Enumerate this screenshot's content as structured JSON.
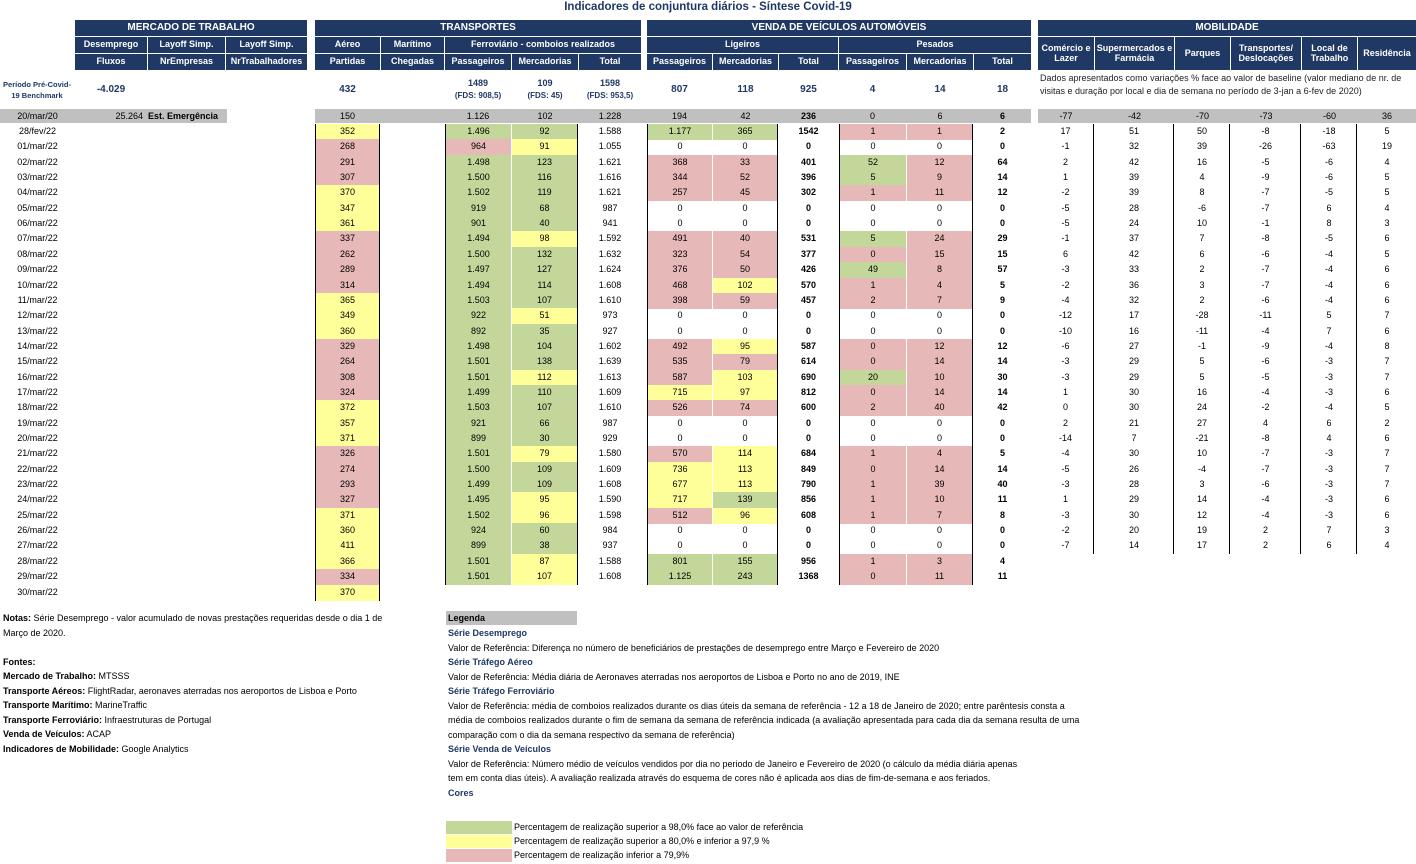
{
  "title": "Indicadores de conjuntura diários - Síntese Covid-19",
  "groups": {
    "mercado": "MERCADO DE TRABALHO",
    "transportes": "TRANSPORTES",
    "veiculos": "VENDA DE VEÍCULOS AUTOMÓVEIS",
    "mobilidade": "MOBILIDADE"
  },
  "subheaders": {
    "desemprego": "Desemprego",
    "layoff1": "Layoff Simp.",
    "layoff2": "Layoff Simp.",
    "aereo": "Aéreo",
    "maritimo": "Marítimo",
    "ferroviario": "Ferroviário - comboios realizados",
    "ligeiros": "Ligeiros",
    "pesados": "Pesados",
    "comercio": "Comércio e Lazer",
    "supermercados": "Supermercados e Farmácia",
    "parques": "Parques",
    "transportes": "Transportes/ Deslocações",
    "trabalho": "Local de Trabalho",
    "residencia": "Residência"
  },
  "subsubheaders": {
    "fluxos": "Fluxos",
    "nrempresas": "NrEmpresas",
    "nrtrabalhadores": "NrTrabalhadores",
    "partidas": "Partidas",
    "chegadas": "Chegadas",
    "f_passageiros": "Passageiros",
    "f_mercadorias": "Mercadorias",
    "f_total": "Total",
    "l_passageiros": "Passageiros",
    "l_mercadorias": "Mercadorias",
    "l_total": "Total",
    "p_passageiros": "Passageiros",
    "p_mercadorias": "Mercadorias",
    "p_total": "Total"
  },
  "benchmark": {
    "label": "Período Pré-Covid-19 Benchmark",
    "desemprego": "-4.029",
    "aereo": "432",
    "f_pass": "1489",
    "f_pass_sub": "(FDS: 908,5)",
    "f_merc": "109",
    "f_merc_sub": "(FDS: 45)",
    "f_total": "1598",
    "f_total_sub": "(FDS: 953,5)",
    "l_pass": "807",
    "l_merc": "118",
    "l_total": "925",
    "p_pass": "4",
    "p_merc": "14",
    "p_total": "18",
    "mob_note": "Dados apresentados como variações % face ao valor de baseline (valor mediano de nr. de visitas e duração por local e dia de semana no período de 3-jan a 6-fev de 2020)"
  },
  "emergency_row": {
    "date": "20/mar/20",
    "desemprego": "25.264",
    "label": "Est. Emergência",
    "aereo": "150",
    "f_pass": "1.126",
    "f_merc": "102",
    "f_total": "1.228",
    "l_pass": "194",
    "l_merc": "42",
    "l_total": "236",
    "p_pass": "0",
    "p_merc": "6",
    "p_total": "6",
    "mob": [
      "-77",
      "-42",
      "-70",
      "-73",
      "-60",
      "36"
    ]
  },
  "rows": [
    {
      "d": "28/fev/22",
      "a": "352",
      "ac": "y",
      "fp": "1.496",
      "fpc": "g",
      "fm": "92",
      "fmc": "g",
      "ft": "1.588",
      "lp": "1.177",
      "lpc": "g",
      "lm": "365",
      "lmc": "g",
      "lt": "1542",
      "pp": "1",
      "ppc": "r",
      "pm": "1",
      "pmc": "r",
      "pt": "2",
      "m": [
        "17",
        "51",
        "50",
        "-8",
        "-18",
        "5"
      ]
    },
    {
      "d": "01/mar/22",
      "a": "268",
      "ac": "r",
      "fp": "964",
      "fpc": "r",
      "fm": "91",
      "fmc": "y",
      "ft": "1.055",
      "lp": "0",
      "lpc": "",
      "lm": "0",
      "lmc": "",
      "lt": "0",
      "pp": "0",
      "ppc": "",
      "pm": "0",
      "pmc": "",
      "pt": "0",
      "m": [
        "-1",
        "32",
        "39",
        "-26",
        "-63",
        "19"
      ]
    },
    {
      "d": "02/mar/22",
      "a": "291",
      "ac": "r",
      "fp": "1.498",
      "fpc": "g",
      "fm": "123",
      "fmc": "g",
      "ft": "1.621",
      "lp": "368",
      "lpc": "r",
      "lm": "33",
      "lmc": "r",
      "lt": "401",
      "pp": "52",
      "ppc": "g",
      "pm": "12",
      "pmc": "r",
      "pt": "64",
      "m": [
        "2",
        "42",
        "16",
        "-5",
        "-6",
        "4"
      ]
    },
    {
      "d": "03/mar/22",
      "a": "307",
      "ac": "r",
      "fp": "1.500",
      "fpc": "g",
      "fm": "116",
      "fmc": "g",
      "ft": "1.616",
      "lp": "344",
      "lpc": "r",
      "lm": "52",
      "lmc": "r",
      "lt": "396",
      "pp": "5",
      "ppc": "g",
      "pm": "9",
      "pmc": "r",
      "pt": "14",
      "m": [
        "1",
        "39",
        "4",
        "-9",
        "-6",
        "5"
      ]
    },
    {
      "d": "04/mar/22",
      "a": "370",
      "ac": "y",
      "fp": "1.502",
      "fpc": "g",
      "fm": "119",
      "fmc": "g",
      "ft": "1.621",
      "lp": "257",
      "lpc": "r",
      "lm": "45",
      "lmc": "r",
      "lt": "302",
      "pp": "1",
      "ppc": "r",
      "pm": "11",
      "pmc": "r",
      "pt": "12",
      "m": [
        "-2",
        "39",
        "8",
        "-7",
        "-5",
        "5"
      ]
    },
    {
      "d": "05/mar/22",
      "a": "347",
      "ac": "y",
      "fp": "919",
      "fpc": "g",
      "fm": "68",
      "fmc": "g",
      "ft": "987",
      "lp": "0",
      "lpc": "",
      "lm": "0",
      "lmc": "",
      "lt": "0",
      "pp": "0",
      "ppc": "",
      "pm": "0",
      "pmc": "",
      "pt": "0",
      "m": [
        "-5",
        "28",
        "-6",
        "-7",
        "6",
        "4"
      ]
    },
    {
      "d": "06/mar/22",
      "a": "361",
      "ac": "y",
      "fp": "901",
      "fpc": "g",
      "fm": "40",
      "fmc": "g",
      "ft": "941",
      "lp": "0",
      "lpc": "",
      "lm": "0",
      "lmc": "",
      "lt": "0",
      "pp": "0",
      "ppc": "",
      "pm": "0",
      "pmc": "",
      "pt": "0",
      "m": [
        "-5",
        "24",
        "10",
        "-1",
        "8",
        "3"
      ]
    },
    {
      "d": "07/mar/22",
      "a": "337",
      "ac": "r",
      "fp": "1.494",
      "fpc": "g",
      "fm": "98",
      "fmc": "y",
      "ft": "1.592",
      "lp": "491",
      "lpc": "r",
      "lm": "40",
      "lmc": "r",
      "lt": "531",
      "pp": "5",
      "ppc": "g",
      "pm": "24",
      "pmc": "r",
      "pt": "29",
      "m": [
        "-1",
        "37",
        "7",
        "-8",
        "-5",
        "6"
      ]
    },
    {
      "d": "08/mar/22",
      "a": "262",
      "ac": "r",
      "fp": "1.500",
      "fpc": "g",
      "fm": "132",
      "fmc": "g",
      "ft": "1.632",
      "lp": "323",
      "lpc": "r",
      "lm": "54",
      "lmc": "r",
      "lt": "377",
      "pp": "0",
      "ppc": "r",
      "pm": "15",
      "pmc": "r",
      "pt": "15",
      "m": [
        "6",
        "42",
        "6",
        "-6",
        "-4",
        "5"
      ]
    },
    {
      "d": "09/mar/22",
      "a": "289",
      "ac": "r",
      "fp": "1.497",
      "fpc": "g",
      "fm": "127",
      "fmc": "g",
      "ft": "1.624",
      "lp": "376",
      "lpc": "r",
      "lm": "50",
      "lmc": "r",
      "lt": "426",
      "pp": "49",
      "ppc": "g",
      "pm": "8",
      "pmc": "r",
      "pt": "57",
      "m": [
        "-3",
        "33",
        "2",
        "-7",
        "-4",
        "6"
      ]
    },
    {
      "d": "10/mar/22",
      "a": "314",
      "ac": "r",
      "fp": "1.494",
      "fpc": "g",
      "fm": "114",
      "fmc": "g",
      "ft": "1.608",
      "lp": "468",
      "lpc": "r",
      "lm": "102",
      "lmc": "y",
      "lt": "570",
      "pp": "1",
      "ppc": "r",
      "pm": "4",
      "pmc": "r",
      "pt": "5",
      "m": [
        "-2",
        "36",
        "3",
        "-7",
        "-4",
        "6"
      ]
    },
    {
      "d": "11/mar/22",
      "a": "365",
      "ac": "y",
      "fp": "1.503",
      "fpc": "g",
      "fm": "107",
      "fmc": "g",
      "ft": "1.610",
      "lp": "398",
      "lpc": "r",
      "lm": "59",
      "lmc": "r",
      "lt": "457",
      "pp": "2",
      "ppc": "r",
      "pm": "7",
      "pmc": "r",
      "pt": "9",
      "m": [
        "-4",
        "32",
        "2",
        "-6",
        "-4",
        "6"
      ]
    },
    {
      "d": "12/mar/22",
      "a": "349",
      "ac": "y",
      "fp": "922",
      "fpc": "g",
      "fm": "51",
      "fmc": "y",
      "ft": "973",
      "lp": "0",
      "lpc": "",
      "lm": "0",
      "lmc": "",
      "lt": "0",
      "pp": "0",
      "ppc": "",
      "pm": "0",
      "pmc": "",
      "pt": "0",
      "m": [
        "-12",
        "17",
        "-28",
        "-11",
        "5",
        "7"
      ]
    },
    {
      "d": "13/mar/22",
      "a": "360",
      "ac": "y",
      "fp": "892",
      "fpc": "g",
      "fm": "35",
      "fmc": "g",
      "ft": "927",
      "lp": "0",
      "lpc": "",
      "lm": "0",
      "lmc": "",
      "lt": "0",
      "pp": "0",
      "ppc": "",
      "pm": "0",
      "pmc": "",
      "pt": "0",
      "m": [
        "-10",
        "16",
        "-11",
        "-4",
        "7",
        "6"
      ]
    },
    {
      "d": "14/mar/22",
      "a": "329",
      "ac": "r",
      "fp": "1.498",
      "fpc": "g",
      "fm": "104",
      "fmc": "g",
      "ft": "1.602",
      "lp": "492",
      "lpc": "r",
      "lm": "95",
      "lmc": "y",
      "lt": "587",
      "pp": "0",
      "ppc": "r",
      "pm": "12",
      "pmc": "r",
      "pt": "12",
      "m": [
        "-6",
        "27",
        "-1",
        "-9",
        "-4",
        "8"
      ]
    },
    {
      "d": "15/mar/22",
      "a": "264",
      "ac": "r",
      "fp": "1.501",
      "fpc": "g",
      "fm": "138",
      "fmc": "g",
      "ft": "1.639",
      "lp": "535",
      "lpc": "r",
      "lm": "79",
      "lmc": "r",
      "lt": "614",
      "pp": "0",
      "ppc": "r",
      "pm": "14",
      "pmc": "r",
      "pt": "14",
      "m": [
        "-3",
        "29",
        "5",
        "-6",
        "-3",
        "7"
      ]
    },
    {
      "d": "16/mar/22",
      "a": "308",
      "ac": "r",
      "fp": "1.501",
      "fpc": "g",
      "fm": "112",
      "fmc": "y",
      "ft": "1.613",
      "lp": "587",
      "lpc": "r",
      "lm": "103",
      "lmc": "y",
      "lt": "690",
      "pp": "20",
      "ppc": "g",
      "pm": "10",
      "pmc": "r",
      "pt": "30",
      "m": [
        "-3",
        "29",
        "5",
        "-5",
        "-3",
        "7"
      ]
    },
    {
      "d": "17/mar/22",
      "a": "324",
      "ac": "r",
      "fp": "1.499",
      "fpc": "g",
      "fm": "110",
      "fmc": "g",
      "ft": "1.609",
      "lp": "715",
      "lpc": "y",
      "lm": "97",
      "lmc": "y",
      "lt": "812",
      "pp": "0",
      "ppc": "r",
      "pm": "14",
      "pmc": "r",
      "pt": "14",
      "m": [
        "1",
        "30",
        "16",
        "-4",
        "-3",
        "6"
      ]
    },
    {
      "d": "18/mar/22",
      "a": "372",
      "ac": "y",
      "fp": "1.503",
      "fpc": "g",
      "fm": "107",
      "fmc": "g",
      "ft": "1.610",
      "lp": "526",
      "lpc": "r",
      "lm": "74",
      "lmc": "r",
      "lt": "600",
      "pp": "2",
      "ppc": "r",
      "pm": "40",
      "pmc": "r",
      "pt": "42",
      "m": [
        "0",
        "30",
        "24",
        "-2",
        "-4",
        "5"
      ]
    },
    {
      "d": "19/mar/22",
      "a": "357",
      "ac": "y",
      "fp": "921",
      "fpc": "g",
      "fm": "66",
      "fmc": "g",
      "ft": "987",
      "lp": "0",
      "lpc": "",
      "lm": "0",
      "lmc": "",
      "lt": "0",
      "pp": "0",
      "ppc": "",
      "pm": "0",
      "pmc": "",
      "pt": "0",
      "m": [
        "2",
        "21",
        "27",
        "4",
        "6",
        "2"
      ]
    },
    {
      "d": "20/mar/22",
      "a": "371",
      "ac": "y",
      "fp": "899",
      "fpc": "g",
      "fm": "30",
      "fmc": "g",
      "ft": "929",
      "lp": "0",
      "lpc": "",
      "lm": "0",
      "lmc": "",
      "lt": "0",
      "pp": "0",
      "ppc": "",
      "pm": "0",
      "pmc": "",
      "pt": "0",
      "m": [
        "-14",
        "7",
        "-21",
        "-8",
        "4",
        "6"
      ]
    },
    {
      "d": "21/mar/22",
      "a": "326",
      "ac": "r",
      "fp": "1.501",
      "fpc": "g",
      "fm": "79",
      "fmc": "y",
      "ft": "1.580",
      "lp": "570",
      "lpc": "r",
      "lm": "114",
      "lmc": "y",
      "lt": "684",
      "pp": "1",
      "ppc": "r",
      "pm": "4",
      "pmc": "r",
      "pt": "5",
      "m": [
        "-4",
        "30",
        "10",
        "-7",
        "-3",
        "7"
      ]
    },
    {
      "d": "22/mar/22",
      "a": "274",
      "ac": "r",
      "fp": "1.500",
      "fpc": "g",
      "fm": "109",
      "fmc": "g",
      "ft": "1.609",
      "lp": "736",
      "lpc": "y",
      "lm": "113",
      "lmc": "y",
      "lt": "849",
      "pp": "0",
      "ppc": "r",
      "pm": "14",
      "pmc": "r",
      "pt": "14",
      "m": [
        "-5",
        "26",
        "-4",
        "-7",
        "-3",
        "7"
      ]
    },
    {
      "d": "23/mar/22",
      "a": "293",
      "ac": "r",
      "fp": "1.499",
      "fpc": "g",
      "fm": "109",
      "fmc": "g",
      "ft": "1.608",
      "lp": "677",
      "lpc": "y",
      "lm": "113",
      "lmc": "y",
      "lt": "790",
      "pp": "1",
      "ppc": "r",
      "pm": "39",
      "pmc": "r",
      "pt": "40",
      "m": [
        "-3",
        "28",
        "3",
        "-6",
        "-3",
        "7"
      ]
    },
    {
      "d": "24/mar/22",
      "a": "327",
      "ac": "r",
      "fp": "1.495",
      "fpc": "g",
      "fm": "95",
      "fmc": "y",
      "ft": "1.590",
      "lp": "717",
      "lpc": "y",
      "lm": "139",
      "lmc": "g",
      "lt": "856",
      "pp": "1",
      "ppc": "r",
      "pm": "10",
      "pmc": "r",
      "pt": "11",
      "m": [
        "1",
        "29",
        "14",
        "-4",
        "-3",
        "6"
      ]
    },
    {
      "d": "25/mar/22",
      "a": "371",
      "ac": "y",
      "fp": "1.502",
      "fpc": "g",
      "fm": "96",
      "fmc": "y",
      "ft": "1.598",
      "lp": "512",
      "lpc": "r",
      "lm": "96",
      "lmc": "y",
      "lt": "608",
      "pp": "1",
      "ppc": "r",
      "pm": "7",
      "pmc": "r",
      "pt": "8",
      "m": [
        "-3",
        "30",
        "12",
        "-4",
        "-3",
        "6"
      ]
    },
    {
      "d": "26/mar/22",
      "a": "360",
      "ac": "y",
      "fp": "924",
      "fpc": "g",
      "fm": "60",
      "fmc": "g",
      "ft": "984",
      "lp": "0",
      "lpc": "",
      "lm": "0",
      "lmc": "",
      "lt": "0",
      "pp": "0",
      "ppc": "",
      "pm": "0",
      "pmc": "",
      "pt": "0",
      "m": [
        "-2",
        "20",
        "19",
        "2",
        "7",
        "3"
      ]
    },
    {
      "d": "27/mar/22",
      "a": "411",
      "ac": "y",
      "fp": "899",
      "fpc": "g",
      "fm": "38",
      "fmc": "g",
      "ft": "937",
      "lp": "0",
      "lpc": "",
      "lm": "0",
      "lmc": "",
      "lt": "0",
      "pp": "0",
      "ppc": "",
      "pm": "0",
      "pmc": "",
      "pt": "0",
      "m": [
        "-7",
        "14",
        "17",
        "2",
        "6",
        "4"
      ]
    },
    {
      "d": "28/mar/22",
      "a": "366",
      "ac": "y",
      "fp": "1.501",
      "fpc": "g",
      "fm": "87",
      "fmc": "y",
      "ft": "1.588",
      "lp": "801",
      "lpc": "g",
      "lm": "155",
      "lmc": "g",
      "lt": "956",
      "pp": "1",
      "ppc": "r",
      "pm": "3",
      "pmc": "r",
      "pt": "4",
      "m": []
    },
    {
      "d": "29/mar/22",
      "a": "334",
      "ac": "r",
      "fp": "1.501",
      "fpc": "g",
      "fm": "107",
      "fmc": "y",
      "ft": "1.608",
      "lp": "1.125",
      "lpc": "g",
      "lm": "243",
      "lmc": "g",
      "lt": "1368",
      "pp": "0",
      "ppc": "r",
      "pm": "11",
      "pmc": "r",
      "pt": "11",
      "m": []
    },
    {
      "d": "30/mar/22",
      "a": "370",
      "ac": "y",
      "fp": "",
      "fpc": "none",
      "fm": "",
      "fmc": "none",
      "ft": "",
      "lp": "",
      "lpc": "none",
      "lm": "",
      "lmc": "none",
      "lt": "",
      "pp": "",
      "ppc": "none",
      "pm": "",
      "pmc": "none",
      "pt": "",
      "m": []
    }
  ],
  "notes": {
    "notas_label": "Notas:",
    "notas_text": " Série Desemprego - valor acumulado de novas prestações requeridas desde o dia 1 de Março de 2020.",
    "fontes_label": "Fontes:",
    "sources": [
      {
        "label": "Mercado de Trabalho:",
        "text": " MTSSS"
      },
      {
        "label": "Transporte Aéreos:",
        "text": " FlightRadar, aeronaves aterradas nos aeroportos de Lisboa e Porto"
      },
      {
        "label": "Transporte Marítimo:",
        "text": " MarineTraffic"
      },
      {
        "label": "Transporte Ferroviário:",
        "text": " Infraestruturas de Portugal"
      },
      {
        "label": "Venda de Veículos:",
        "text": " ACAP"
      },
      {
        "label": "Indicadores de Mobilidade:",
        "text": " Google Analytics"
      }
    ]
  },
  "legend": {
    "title": "Legenda",
    "s1_title": "Série Desemprego",
    "s1_text": "Valor de Referência: Diferença no número de beneficiários de prestações de desemprego entre Março e Fevereiro de 2020",
    "s2_title": "Série Tráfego Aéreo",
    "s2_text": "Valor de Referência: Média diária de Aeronaves aterradas nos aeroportos de Lisboa e Porto no ano de 2019, INE",
    "s3_title": "Série Tráfego Ferroviário",
    "s3_text": "Valor de Referência: média de comboios realizados durante os dias úteis da semana de referência - 12 a 18 de Janeiro de 2020; entre parêntesis consta a média de comboios realizados durante o fim de semana da semana de referência indicada (a avaliação apresentada para cada dia da semana resulta de uma comparação com o dia da semana respectivo da semana de referência)",
    "s4_title": "Série Venda de Veículos",
    "s4_text": "Valor de Referência: Número médio de veículos vendidos por dia no periodo de Janeiro e Fevereiro de 2020 (o cálculo da média diária apenas tem em conta dias úteis). A avaliação realizada através do esquema de cores não é aplicada aos dias de fim-de-semana e aos feriados.",
    "cores_title": "Cores",
    "c1": "Percentagem de realização superior a 98,0% face ao valor de referência",
    "c2": "Percentagem de realização superior a 80,0% e inferior a 97,9 %",
    "c3": "Percentagem de realização inferior a 79,9%",
    "colors": {
      "green": "#c4d79b",
      "yellow": "#ffff99",
      "red": "#e6b9b8",
      "header": "#1f3864"
    }
  }
}
